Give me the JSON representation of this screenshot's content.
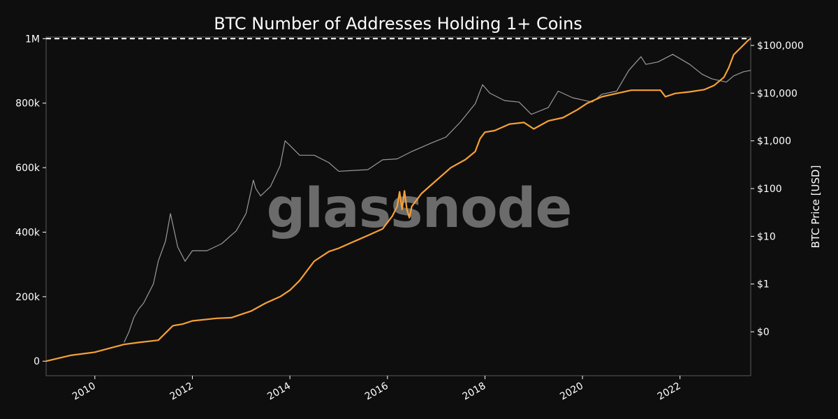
{
  "chart_data": {
    "type": "line",
    "title": "BTC Number of Addresses Holding 1+ Coins",
    "watermark": "glassnode",
    "x_ticks": [
      "2010",
      "2012",
      "2014",
      "2016",
      "2018",
      "2020",
      "2022"
    ],
    "xlim": [
      2009.0,
      2023.45
    ],
    "y_left": {
      "ticks": [
        0,
        200000,
        400000,
        600000,
        800000,
        1000000
      ],
      "tick_labels": [
        "0",
        "200k",
        "400k",
        "600k",
        "800k",
        "1M"
      ],
      "ylim": [
        -45000,
        1005000
      ]
    },
    "y_right": {
      "label": "BTC Price [USD]",
      "scale": "log",
      "ticks": [
        0.1,
        1,
        10,
        100,
        1000,
        10000,
        100000
      ],
      "tick_labels": [
        "$0",
        "$1",
        "$10",
        "$100",
        "$1,000",
        "$10,000",
        "$100,000"
      ],
      "ylim": [
        0.012,
        150000
      ]
    },
    "reference_line": {
      "axis": "left",
      "value": 1000000,
      "style": "dashed",
      "color": "#ffffff"
    },
    "series": [
      {
        "axis": "left",
        "color": "#f7a035",
        "x": [
          2009.0,
          2009.5,
          2010.0,
          2010.3,
          2010.6,
          2010.9,
          2011.3,
          2011.5,
          2011.6,
          2011.8,
          2012.0,
          2012.5,
          2012.8,
          2013.0,
          2013.2,
          2013.5,
          2013.8,
          2014.0,
          2014.2,
          2014.5,
          2014.8,
          2015.0,
          2015.3,
          2015.6,
          2015.9,
          2016.1,
          2016.2,
          2016.25,
          2016.3,
          2016.35,
          2016.4,
          2016.45,
          2016.5,
          2016.7,
          2017.0,
          2017.3,
          2017.6,
          2017.8,
          2017.9,
          2018.0,
          2018.2,
          2018.5,
          2018.8,
          2019.0,
          2019.3,
          2019.6,
          2019.9,
          2020.1,
          2020.4,
          2020.7,
          2021.0,
          2021.3,
          2021.6,
          2021.7,
          2021.9,
          2022.2,
          2022.5,
          2022.7,
          2022.9,
          2023.0,
          2023.1,
          2023.4,
          2023.45
        ],
        "values": [
          0,
          18000,
          28000,
          40000,
          52000,
          58000,
          65000,
          95000,
          110000,
          115000,
          125000,
          133000,
          135000,
          145000,
          155000,
          180000,
          200000,
          220000,
          250000,
          310000,
          340000,
          350000,
          370000,
          390000,
          410000,
          450000,
          480000,
          525000,
          470000,
          528000,
          470000,
          445000,
          480000,
          520000,
          560000,
          600000,
          625000,
          650000,
          690000,
          710000,
          715000,
          735000,
          740000,
          720000,
          745000,
          755000,
          780000,
          800000,
          820000,
          830000,
          840000,
          840000,
          840000,
          820000,
          830000,
          835000,
          842000,
          855000,
          880000,
          910000,
          950000,
          995000,
          1000000
        ]
      },
      {
        "axis": "right",
        "color": "#9a9a9a",
        "x": [
          2010.6,
          2010.7,
          2010.8,
          2010.9,
          2011.0,
          2011.2,
          2011.3,
          2011.45,
          2011.55,
          2011.7,
          2011.85,
          2012.0,
          2012.3,
          2012.6,
          2012.9,
          2013.1,
          2013.25,
          2013.3,
          2013.4,
          2013.6,
          2013.8,
          2013.9,
          2014.0,
          2014.2,
          2014.5,
          2014.8,
          2015.0,
          2015.3,
          2015.6,
          2015.9,
          2016.2,
          2016.5,
          2016.9,
          2017.2,
          2017.5,
          2017.8,
          2017.95,
          2018.1,
          2018.4,
          2018.7,
          2018.95,
          2019.3,
          2019.5,
          2019.8,
          2020.2,
          2020.4,
          2020.7,
          2020.95,
          2021.2,
          2021.3,
          2021.55,
          2021.85,
          2022.2,
          2022.45,
          2022.65,
          2022.95,
          2023.1,
          2023.3,
          2023.45
        ],
        "values": [
          0.06,
          0.1,
          0.2,
          0.3,
          0.4,
          1,
          3,
          8,
          30,
          6,
          3,
          5,
          5,
          7,
          13,
          30,
          150,
          100,
          70,
          110,
          300,
          1000,
          800,
          500,
          500,
          350,
          230,
          240,
          250,
          400,
          420,
          600,
          900,
          1200,
          2500,
          6000,
          15000,
          10000,
          7000,
          6500,
          3600,
          5000,
          11000,
          8000,
          6500,
          9500,
          11000,
          30000,
          58000,
          40000,
          45000,
          65000,
          40000,
          25000,
          20000,
          17000,
          23000,
          28000,
          30000
        ]
      }
    ]
  }
}
